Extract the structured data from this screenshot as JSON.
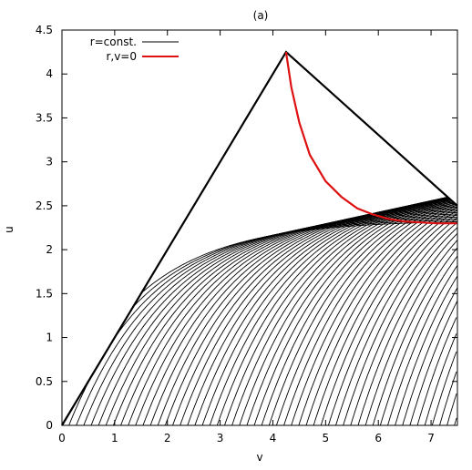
{
  "chart_data": {
    "type": "line",
    "title": "(a)",
    "xlabel": "v",
    "ylabel": "u",
    "xlim": [
      0,
      7.5
    ],
    "ylim": [
      0,
      4.5
    ],
    "xticks": [
      0,
      1,
      2,
      3,
      4,
      5,
      6,
      7
    ],
    "yticks": [
      0,
      0.5,
      1,
      1.5,
      2,
      2.5,
      3,
      3.5,
      4,
      4.5
    ],
    "grid": false,
    "legend_position": "top-left",
    "legend": [
      {
        "label": "r=const.",
        "color": "#000000"
      },
      {
        "label": "r,v=0",
        "color": "#dd1111"
      }
    ],
    "boundary": {
      "name": "boundary",
      "color": "#000000",
      "x": [
        0,
        4.25,
        7.5
      ],
      "y": [
        0,
        4.25,
        2.5
      ]
    },
    "contour_family": {
      "name": "r=const.",
      "color": "#000000",
      "count": 72,
      "v_range": [
        0,
        7.5
      ],
      "u_range": [
        0,
        4.25
      ]
    },
    "series": [
      {
        "name": "r,v=0",
        "color": "#dd1111",
        "x": [
          4.25,
          4.35,
          4.5,
          4.7,
          5.0,
          5.3,
          5.6,
          5.9,
          6.2,
          6.5,
          6.8,
          7.1,
          7.5
        ],
        "y": [
          4.25,
          3.85,
          3.45,
          3.08,
          2.78,
          2.6,
          2.47,
          2.4,
          2.35,
          2.32,
          2.31,
          2.3,
          2.3
        ]
      }
    ]
  }
}
